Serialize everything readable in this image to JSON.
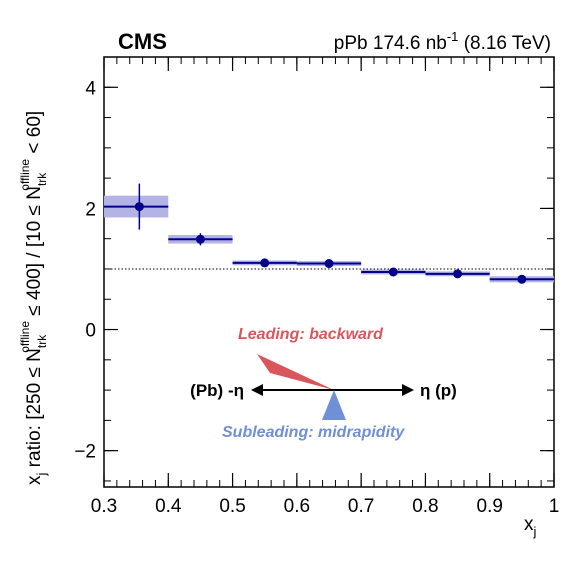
{
  "chart_data": {
    "type": "scatter",
    "experiment_label": "CMS",
    "header_prefix": "pPb 174.6 nb",
    "header_sup": "-1",
    "header_suffix": "(8.16 TeV)",
    "xlabel": "x",
    "xlabel_sub": "j",
    "ylabel": {
      "p1": "x",
      "p1_sub": "j",
      "p2": " ratio: [250 ≤ N",
      "p2_sub": "trk",
      "p2_sup": "offline",
      "p3": " ≤ 400] / [10 ≤ N",
      "p3_sub": "trk",
      "p3_sup": "offline",
      "p4": " < 60]"
    },
    "xlim": [
      0.3,
      1.0
    ],
    "ylim": [
      -2.6,
      4.5
    ],
    "x_ticks": [
      0.3,
      0.4,
      0.5,
      0.6,
      0.7,
      0.8,
      0.9,
      1.0
    ],
    "x_tick_labels": [
      "0.3",
      "0.4",
      "0.5",
      "0.6",
      "0.7",
      "0.8",
      "0.9",
      "1"
    ],
    "y_ticks": [
      -2,
      0,
      2,
      4
    ],
    "y_tick_labels": [
      "−2",
      "0",
      "2",
      "4"
    ],
    "reference_line": 1.0,
    "marker_color": "#00008b",
    "syst_color": "#b3b3e6",
    "points": [
      {
        "x": 0.355,
        "xlo": 0.3,
        "xhi": 0.4,
        "y": 2.03,
        "stat": 0.38,
        "syst": 0.18
      },
      {
        "x": 0.45,
        "xlo": 0.4,
        "xhi": 0.5,
        "y": 1.49,
        "stat": 0.1,
        "syst": 0.07
      },
      {
        "x": 0.55,
        "xlo": 0.5,
        "xhi": 0.6,
        "y": 1.1,
        "stat": 0.03,
        "syst": 0.04
      },
      {
        "x": 0.65,
        "xlo": 0.6,
        "xhi": 0.7,
        "y": 1.09,
        "stat": 0.03,
        "syst": 0.04
      },
      {
        "x": 0.75,
        "xlo": 0.7,
        "xhi": 0.8,
        "y": 0.95,
        "stat": 0.03,
        "syst": 0.04
      },
      {
        "x": 0.85,
        "xlo": 0.8,
        "xhi": 0.9,
        "y": 0.92,
        "stat": 0.03,
        "syst": 0.04
      },
      {
        "x": 0.95,
        "xlo": 0.9,
        "xhi": 1.0,
        "y": 0.83,
        "stat": 0.04,
        "syst": 0.05
      }
    ],
    "annotations": {
      "leading": "Leading: backward",
      "subleading": "Subleading: midrapidity",
      "left_dir": "(Pb) -η",
      "right_dir": "η (p)",
      "leading_color": "#d9575c",
      "subleading_color": "#6f8fd6"
    }
  }
}
